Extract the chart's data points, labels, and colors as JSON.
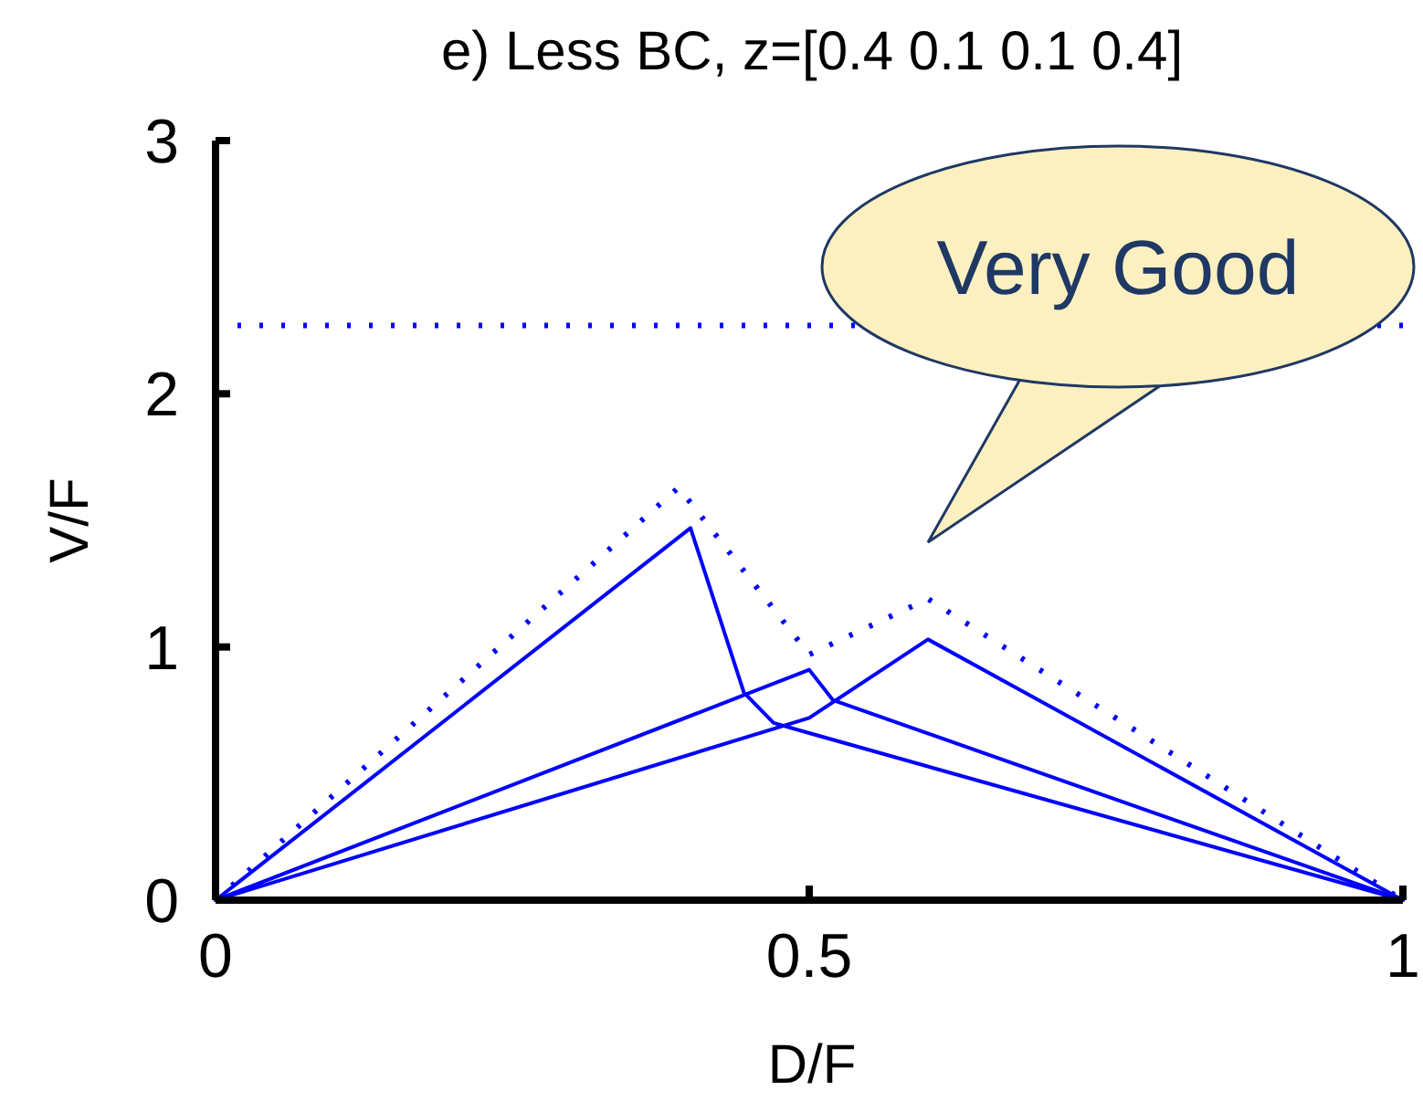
{
  "chart_data": {
    "type": "line",
    "title": "e) Less BC, z=[0.4 0.1 0.1 0.4]",
    "xlabel": "D/F",
    "ylabel": "V/F",
    "xlim": [
      0,
      1
    ],
    "ylim": [
      0,
      3
    ],
    "xticks": [
      0,
      0.5,
      1
    ],
    "yticks": [
      0,
      1,
      2,
      3
    ],
    "grid": false,
    "marker": "none",
    "series": [
      {
        "color": "#0000ff",
        "x": [
          0,
          0.4,
          0.445,
          0.47,
          0.5,
          1
        ],
        "values": [
          0,
          1.47,
          0.82,
          0.7,
          0.66,
          0
        ]
      },
      {
        "color": "#0000ff",
        "x": [
          0,
          0.5,
          0.52,
          1
        ],
        "values": [
          0,
          0.91,
          0.79,
          0
        ]
      },
      {
        "color": "#0000ff",
        "x": [
          0,
          0.5,
          0.6,
          1
        ],
        "values": [
          0,
          0.72,
          1.03,
          0
        ]
      },
      {
        "color": "#0000ff",
        "line_style": "dotted",
        "x": [
          0,
          0.39,
          0.5,
          0.6,
          1
        ],
        "values": [
          0,
          1.63,
          0.97,
          1.19,
          0
        ]
      }
    ],
    "ref_lines": [
      {
        "axis": "y",
        "value": 2.27,
        "color": "#0000ff",
        "line_style": "dotted"
      }
    ],
    "annotations": [
      "Very Good"
    ]
  }
}
